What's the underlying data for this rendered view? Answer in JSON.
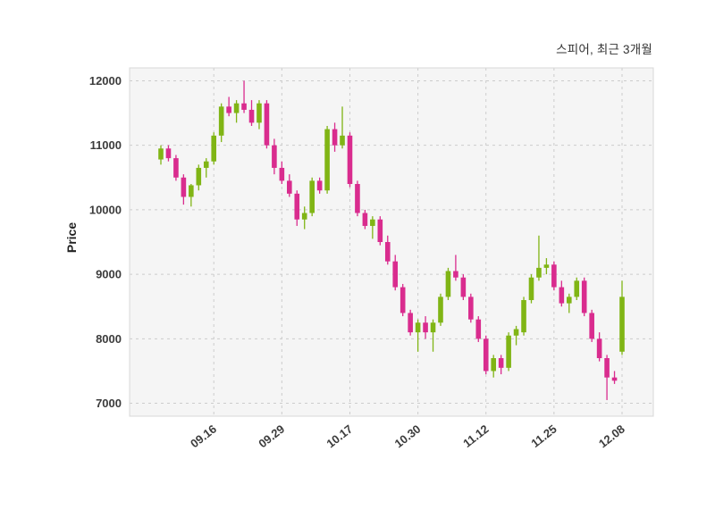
{
  "chart_data": {
    "type": "candlestick",
    "title": "스피어, 최근 3개월",
    "ylabel": "Price",
    "ylim": [
      6800,
      12200
    ],
    "yticks": [
      7000,
      8000,
      9000,
      10000,
      11000,
      12000
    ],
    "grid": true,
    "legend": "none",
    "colors": {
      "up": "#80b515",
      "down": "#d92c8e",
      "grid": "#cccccc",
      "plot_bg": "#f5f5f5",
      "border": "#d8d8d8"
    },
    "x_tick_labels": [
      "09.16",
      "09.29",
      "10.17",
      "10.30",
      "11.12",
      "11.25",
      "12.08"
    ],
    "x_tick_indices": [
      7,
      16,
      25,
      34,
      43,
      52,
      61
    ],
    "candles_format": [
      "open",
      "high",
      "low",
      "close"
    ],
    "candles": [
      [
        10780,
        11000,
        10700,
        10950
      ],
      [
        10950,
        11000,
        10750,
        10800
      ],
      [
        10800,
        10850,
        10450,
        10500
      ],
      [
        10500,
        10550,
        10080,
        10200
      ],
      [
        10200,
        10400,
        10050,
        10380
      ],
      [
        10380,
        10700,
        10300,
        10650
      ],
      [
        10650,
        10800,
        10500,
        10750
      ],
      [
        10750,
        11200,
        10700,
        11150
      ],
      [
        11150,
        11650,
        11050,
        11600
      ],
      [
        11600,
        11750,
        11450,
        11500
      ],
      [
        11500,
        11700,
        11350,
        11650
      ],
      [
        11650,
        12000,
        11500,
        11550
      ],
      [
        11550,
        11700,
        11300,
        11350
      ],
      [
        11350,
        11700,
        11250,
        11650
      ],
      [
        11650,
        11700,
        10950,
        11000
      ],
      [
        11000,
        11100,
        10550,
        10650
      ],
      [
        10650,
        10750,
        10400,
        10450
      ],
      [
        10450,
        10550,
        10200,
        10250
      ],
      [
        10250,
        10300,
        9750,
        9850
      ],
      [
        9850,
        10050,
        9700,
        9950
      ],
      [
        9950,
        10500,
        9900,
        10450
      ],
      [
        10450,
        10500,
        10250,
        10300
      ],
      [
        10300,
        11300,
        10250,
        11250
      ],
      [
        11250,
        11350,
        10900,
        11000
      ],
      [
        11000,
        11600,
        10950,
        11150
      ],
      [
        11150,
        11200,
        10350,
        10400
      ],
      [
        10400,
        10450,
        9900,
        9950
      ],
      [
        9950,
        10000,
        9700,
        9750
      ],
      [
        9750,
        9900,
        9550,
        9850
      ],
      [
        9850,
        9900,
        9450,
        9500
      ],
      [
        9500,
        9600,
        9150,
        9200
      ],
      [
        9200,
        9300,
        8750,
        8800
      ],
      [
        8800,
        8850,
        8350,
        8400
      ],
      [
        8400,
        8450,
        8050,
        8100
      ],
      [
        8100,
        8300,
        7800,
        8250
      ],
      [
        8250,
        8350,
        8000,
        8100
      ],
      [
        8100,
        8300,
        7800,
        8250
      ],
      [
        8250,
        8700,
        8200,
        8650
      ],
      [
        8650,
        9100,
        8600,
        9050
      ],
      [
        9050,
        9300,
        8900,
        8950
      ],
      [
        8950,
        9000,
        8600,
        8650
      ],
      [
        8650,
        8700,
        8250,
        8300
      ],
      [
        8300,
        8350,
        7950,
        8000
      ],
      [
        8000,
        8050,
        7450,
        7500
      ],
      [
        7500,
        7750,
        7400,
        7700
      ],
      [
        7700,
        7750,
        7450,
        7550
      ],
      [
        7550,
        8100,
        7500,
        8050
      ],
      [
        8050,
        8200,
        7900,
        8150
      ],
      [
        8100,
        8650,
        8050,
        8600
      ],
      [
        8600,
        9000,
        8550,
        8950
      ],
      [
        8950,
        9600,
        8900,
        9100
      ],
      [
        9100,
        9250,
        9000,
        9150
      ],
      [
        9150,
        9200,
        8750,
        8800
      ],
      [
        8800,
        8900,
        8500,
        8550
      ],
      [
        8550,
        8700,
        8400,
        8650
      ],
      [
        8650,
        8950,
        8600,
        8900
      ],
      [
        8900,
        8950,
        8350,
        8400
      ],
      [
        8400,
        8450,
        7950,
        8000
      ],
      [
        8000,
        8100,
        7650,
        7700
      ],
      [
        7700,
        7750,
        7050,
        7400
      ],
      [
        7400,
        7500,
        7300,
        7350
      ],
      [
        7800,
        8900,
        7750,
        8650
      ]
    ]
  }
}
